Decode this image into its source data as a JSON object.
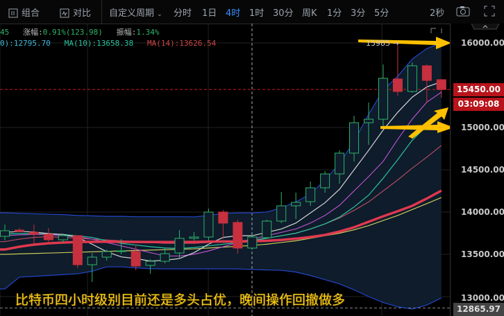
{
  "toolbar": {
    "combine_label": "组合",
    "compare_label": "对比",
    "custom_period_label": "自定义周期",
    "periods": [
      "分时",
      "1日",
      "4时",
      "1时",
      "30分",
      "周K",
      "1分",
      "3分",
      "5分"
    ],
    "active_period": "4时",
    "refresh_label": "2秒",
    "icons": [
      "combine-icon",
      "compare-icon",
      "chevron-down-icon",
      "camera-icon",
      "fullscreen-icon"
    ]
  },
  "info": {
    "row1_prefix": "45",
    "change_label": "涨幅:",
    "change_value": "0.91%(123.98)",
    "amplitude_label": "振幅:",
    "amplitude_value": "1.34%",
    "row2_ma_cut": "0):12795.70",
    "ma10": "MA(10):13658.38",
    "ma14": "MA(14):13626.54"
  },
  "axis": {
    "ticks": [
      "16000.00",
      "15000.00",
      "14500.00",
      "14000.00",
      "13500.00",
      "13000.00"
    ],
    "last_price": "15450.00",
    "countdown": "03:09:08",
    "low_price": "12865.97"
  },
  "high_marker": "15985 →",
  "caption": "比特币四小时级别目前还是多头占优，晚间操作回撤做多",
  "colors": {
    "up": "#2fb36a",
    "down": "#c7303f",
    "band_fill": "#0e1c2b",
    "band_line": "#2446c8",
    "accent": "#3b8cff",
    "annotation": "#ffc000",
    "price_tag": "#b8141b"
  },
  "chart_data": {
    "type": "candlestick",
    "ylim": [
      12800,
      16080
    ],
    "yticks": [
      13000,
      13500,
      14000,
      14500,
      15000,
      16000
    ],
    "last": 15450,
    "high_marker": 15985,
    "low_marker": 12865.97,
    "candles": [
      [
        13713,
        13852,
        13664,
        13779
      ],
      [
        13787,
        13811,
        13770,
        13770
      ],
      [
        13762,
        13852,
        13623,
        13738
      ],
      [
        13738,
        13811,
        13631,
        13672
      ],
      [
        13672,
        13746,
        13639,
        13721
      ],
      [
        13721,
        13721,
        13336,
        13377
      ],
      [
        13377,
        13516,
        13172,
        13467
      ],
      [
        13467,
        13557,
        13426,
        13533
      ],
      [
        13533,
        13680,
        13500,
        13541
      ],
      [
        13533,
        13615,
        13311,
        13361
      ],
      [
        13369,
        13443,
        13270,
        13418
      ],
      [
        13418,
        13582,
        13393,
        13508
      ],
      [
        13516,
        13787,
        13451,
        13689
      ],
      [
        13689,
        13762,
        13664,
        13705
      ],
      [
        13705,
        14041,
        13664,
        14000
      ],
      [
        14000,
        14025,
        13680,
        13869
      ],
      [
        13877,
        13910,
        13508,
        13574
      ],
      [
        13574,
        13730,
        13557,
        13705
      ],
      [
        13697,
        13910,
        13680,
        13893
      ],
      [
        13893,
        14238,
        13869,
        14074
      ],
      [
        14074,
        14230,
        13918,
        14115
      ],
      [
        14123,
        14361,
        14074,
        14287
      ],
      [
        14287,
        14484,
        14230,
        14451
      ],
      [
        14451,
        14730,
        14336,
        14697
      ],
      [
        14697,
        15139,
        14598,
        15057
      ],
      [
        15057,
        15295,
        14795,
        15098
      ],
      [
        15098,
        15746,
        15016,
        15582
      ],
      [
        15574,
        15985,
        15377,
        15426
      ],
      [
        15426,
        15770,
        15410,
        15730
      ],
      [
        15730,
        15746,
        15287,
        15557
      ],
      [
        15566,
        15566,
        15352,
        15450
      ]
    ],
    "series": [
      {
        "role": "band-upper",
        "color": "#2446c8",
        "values": [
          13992,
          13985,
          13980,
          13975,
          13970,
          13960,
          13955,
          13950,
          13950,
          13945,
          13945,
          13945,
          13945,
          13943,
          13960,
          13985,
          13990,
          13990,
          14000,
          14049,
          14120,
          14213,
          14377,
          14574,
          14836,
          15156,
          15443,
          15607,
          15811,
          15934,
          16000
        ]
      },
      {
        "role": "band-lower",
        "color": "#2446c8",
        "values": [
          13090,
          13230,
          13240,
          13250,
          13260,
          13270,
          13300,
          13352,
          13352,
          13340,
          13330,
          13328,
          13328,
          13328,
          13328,
          13328,
          13328,
          13320,
          13315,
          13311,
          13290,
          13250,
          13200,
          13150,
          13080,
          13000,
          12930,
          12880,
          12852,
          12900,
          12984
        ]
      },
      {
        "role": "ma",
        "color": "#c9c95a",
        "values": [
          13500,
          13505,
          13510,
          13515,
          13520,
          13525,
          13530,
          13535,
          13540,
          13545,
          13550,
          13555,
          13560,
          13565,
          13575,
          13585,
          13595,
          13605,
          13620,
          13640,
          13660,
          13690,
          13720,
          13750,
          13790,
          13840,
          13900,
          13960,
          14030,
          14100,
          14172
        ]
      },
      {
        "role": "ma",
        "color": "#b24a63",
        "values": [
          13650,
          13680,
          13700,
          13710,
          13700,
          13690,
          13680,
          13670,
          13660,
          13650,
          13640,
          13630,
          13630,
          13630,
          13640,
          13650,
          13660,
          13670,
          13690,
          13720,
          13750,
          13800,
          13860,
          13930,
          14020,
          14120,
          14250,
          14380,
          14520,
          14650,
          14787
        ]
      },
      {
        "role": "ma",
        "color": "#2bc4a0",
        "values": [
          13740,
          13745,
          13745,
          13740,
          13735,
          13720,
          13700,
          13660,
          13630,
          13610,
          13590,
          13575,
          13570,
          13580,
          13600,
          13620,
          13640,
          13660,
          13690,
          13720,
          13750,
          13800,
          13860,
          13940,
          14060,
          14200,
          14400,
          14620,
          14850,
          15020,
          15156
        ]
      },
      {
        "role": "ma",
        "color": "#b552c8",
        "values": [
          13720,
          13730,
          13735,
          13735,
          13720,
          13710,
          13680,
          13640,
          13600,
          13560,
          13520,
          13480,
          13480,
          13500,
          13540,
          13590,
          13640,
          13680,
          13720,
          13760,
          13800,
          13870,
          13960,
          14080,
          14250,
          14420,
          14600,
          14860,
          15100,
          15300,
          15418
        ]
      },
      {
        "role": "ma",
        "color": "#d6d6d6",
        "values": [
          13760,
          13770,
          13765,
          13745,
          13735,
          13700,
          13620,
          13530,
          13470,
          13450,
          13420,
          13430,
          13450,
          13520,
          13620,
          13700,
          13720,
          13720,
          13760,
          13800,
          13870,
          13990,
          14110,
          14270,
          14500,
          14730,
          14970,
          15180,
          15360,
          15480,
          15541
        ]
      },
      {
        "role": "ma-thick",
        "color": "#e0384f",
        "values": [
          13557,
          13590,
          13615,
          13630,
          13639,
          13645,
          13648,
          13650,
          13648,
          13647,
          13645,
          13645,
          13645,
          13647,
          13650,
          13652,
          13652,
          13655,
          13660,
          13670,
          13685,
          13705,
          13730,
          13770,
          13820,
          13885,
          13950,
          14010,
          14074,
          14160,
          14254
        ]
      }
    ]
  }
}
